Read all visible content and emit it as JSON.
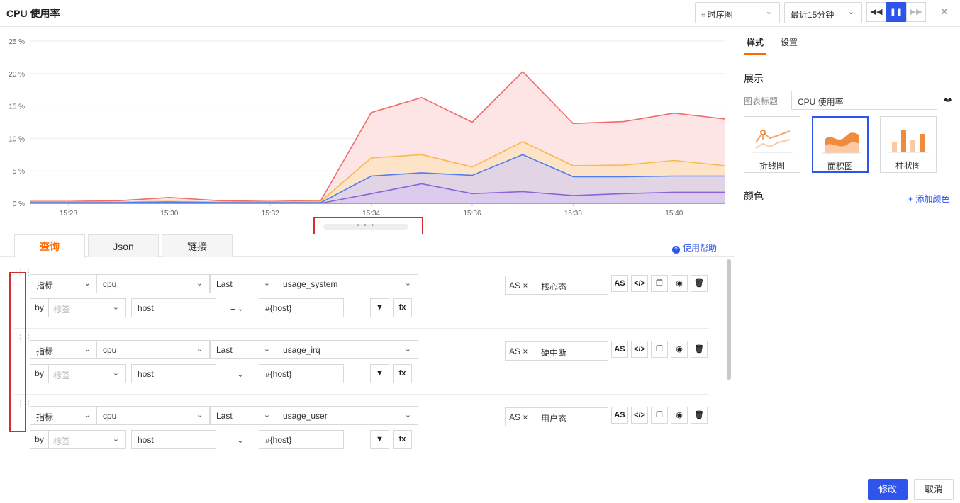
{
  "header": {
    "title": "CPU 使用率",
    "chart_type_select": "时序图",
    "time_range_select": "最近15分钟",
    "rewind_icon": "rewind-icon",
    "pause_icon": "pause-icon",
    "forward_icon": "forward-icon",
    "close_icon": "close-icon"
  },
  "chart_data": {
    "type": "area",
    "x": [
      "15:27:15",
      "15:28",
      "15:29",
      "15:30",
      "15:31",
      "15:32",
      "15:33",
      "15:34",
      "15:35",
      "15:36",
      "15:37",
      "15:38",
      "15:39",
      "15:40",
      "15:41"
    ],
    "x_ticks": [
      "15:28",
      "15:30",
      "15:32",
      "15:34",
      "15:36",
      "15:38",
      "15:40"
    ],
    "y_ticks": [
      "25 %",
      "20 %",
      "15 %",
      "10 %",
      "5 %",
      "0 %"
    ],
    "ylim": [
      0,
      25
    ],
    "grid": true,
    "legend": "none",
    "series": [
      {
        "color": "#f06b6b",
        "fill": "#fde0e0",
        "values": [
          0.3,
          0.3,
          0.4,
          0.9,
          0.4,
          0.3,
          0.4,
          14.0,
          16.3,
          12.5,
          20.3,
          12.3,
          12.6,
          13.9,
          13.0
        ]
      },
      {
        "color": "#f8b84e",
        "fill": "#fde4c4",
        "values": [
          0.2,
          0.2,
          0.2,
          0.3,
          0.2,
          0.2,
          0.3,
          7.0,
          7.5,
          5.6,
          9.5,
          5.8,
          5.9,
          6.6,
          5.8
        ]
      },
      {
        "color": "#4e7df0",
        "fill": "#dcd2ea",
        "values": [
          0.1,
          0.1,
          0.1,
          0.2,
          0.1,
          0.1,
          0.1,
          4.2,
          4.7,
          4.3,
          7.5,
          4.1,
          4.1,
          4.2,
          4.2
        ]
      },
      {
        "color": "#8a63d8",
        "fill": "#d9c9ef",
        "values": [
          0.0,
          0.0,
          0.0,
          0.0,
          0.0,
          0.0,
          0.0,
          1.5,
          3.0,
          1.5,
          1.8,
          1.2,
          1.5,
          1.7,
          1.7
        ]
      },
      {
        "color": "#36c6c9",
        "fill": "#c7eef0",
        "values": [
          0,
          0,
          0,
          0,
          0,
          0,
          0,
          0,
          0,
          0,
          0,
          0,
          0,
          0,
          0
        ]
      }
    ]
  },
  "query": {
    "tabs": [
      "查询",
      "Json",
      "链接"
    ],
    "help": "使用帮助",
    "rows": [
      {
        "type": "指标",
        "measurement": "cpu",
        "func": "Last",
        "field": "usage_system",
        "by": "by",
        "tag_placeholder": "标签",
        "tag_value": "host",
        "op": "=",
        "value": "#{host}",
        "as": "AS",
        "alias": "核心态"
      },
      {
        "type": "指标",
        "measurement": "cpu",
        "func": "Last",
        "field": "usage_irq",
        "by": "by",
        "tag_placeholder": "标签",
        "tag_value": "host",
        "op": "=",
        "value": "#{host}",
        "as": "AS",
        "alias": "硬中断"
      },
      {
        "type": "指标",
        "measurement": "cpu",
        "func": "Last",
        "field": "usage_user",
        "by": "by",
        "tag_placeholder": "标签",
        "tag_value": "host",
        "op": "=",
        "value": "#{host}",
        "as": "AS",
        "alias": "用户态"
      }
    ],
    "filter_btn": "filter-icon",
    "fx_btn": "fx",
    "as_btn": "AS"
  },
  "right": {
    "tabs": [
      "样式",
      "设置"
    ],
    "display_section": "展示",
    "chart_title_label": "图表标题",
    "chart_title_value": "CPU 使用率",
    "chart_types": [
      "折线图",
      "面积图",
      "柱状图"
    ],
    "color_section": "颜色",
    "add_color": "+ 添加颜色"
  },
  "footer": {
    "modify": "修改",
    "cancel": "取消"
  }
}
